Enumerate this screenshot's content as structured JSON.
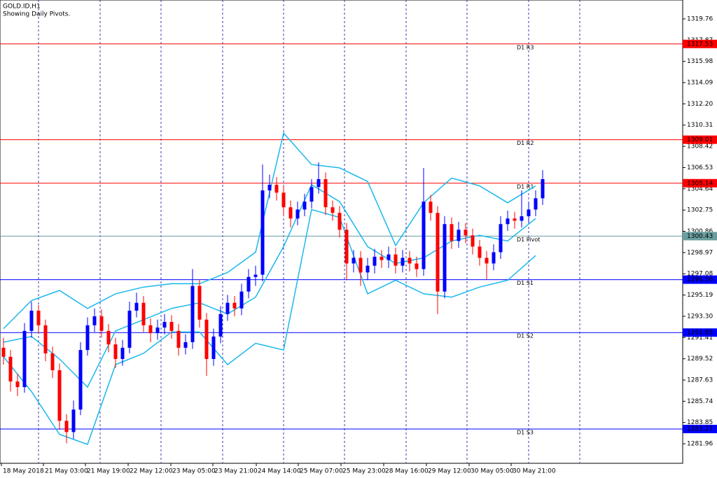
{
  "chart_data": {
    "type": "candlestick",
    "title": "GOLD.ID,H1",
    "subtitle": "Showing Daily Pivots.",
    "up_color": "#0000ff",
    "down_color": "#ff0000",
    "band_color": "#1ab8ec",
    "xlim": [
      -0.5,
      97
    ],
    "ylim": [
      1280.22,
      1321.44
    ],
    "yticks": [
      1319.76,
      1317.87,
      1315.98,
      1314.09,
      {
        "value": 1312.2,
        "label": "1312.20"
      },
      1310.31,
      1308.42,
      1306.53,
      1304.64,
      1302.75,
      1300.86,
      1298.97,
      1297.08,
      1295.19,
      {
        "value": 1293.3,
        "label": "1293.30"
      },
      1291.41,
      1289.52,
      1287.63,
      1285.74,
      1283.85,
      1281.96
    ],
    "xticks": [
      {
        "value": -0.3,
        "label": "18 May 2018"
      },
      {
        "value": 5.7,
        "label": "21 May 03:00"
      },
      {
        "value": 11.7,
        "label": "21 May 19:00"
      },
      {
        "value": 17.8,
        "label": "22 May 12:00"
      },
      {
        "value": 23.9,
        "label": "23 May 05:00"
      },
      {
        "value": 29.9,
        "label": "23 May 21:00"
      },
      {
        "value": 36.1,
        "label": "24 May 14:00"
      },
      {
        "value": 42.1,
        "label": "25 May 07:00"
      },
      {
        "value": 48.2,
        "label": "25 May 23:00"
      },
      {
        "value": 54.3,
        "label": "28 May 16:00"
      },
      {
        "value": 60.4,
        "label": "29 May 12:00"
      },
      {
        "value": 66.5,
        "label": "30 May 05:00"
      },
      {
        "value": 72.5,
        "label": "30 May 21:00"
      }
    ],
    "open": [
      1290.5,
      1289.7,
      1287.5,
      1287.0,
      1292.0,
      1293.8,
      1292.5,
      1290.0,
      1288.5,
      1284.0,
      1283.0,
      1285.0,
      1290.3,
      1292.5,
      1293.3,
      1292.0,
      1290.8,
      1289.5,
      1290.5,
      1293.8,
      1294.5,
      1292.5,
      1291.8,
      1292.3,
      1292.8,
      1292.0,
      1290.5,
      1291.0,
      1296.0,
      1293.0,
      1289.5,
      1291.5,
      1293.5,
      1294.5,
      1294.0,
      1295.5,
      1296.8,
      1297.0,
      1304.5,
      1305.0,
      1304.3,
      1303.0,
      1302.0,
      1302.8,
      1303.5,
      1304.8,
      1305.5,
      1303.0,
      1302.5,
      1301.0,
      1298.0,
      1298.5,
      1297.2,
      1297.8,
      1298.6,
      1298.3,
      1298.8,
      1297.8,
      1298.5,
      1298.0,
      1297.5,
      1303.5,
      1302.5,
      1295.5,
      1301.5,
      1300.0,
      1301.0,
      1300.5,
      1299.5,
      1298.5,
      1298.0,
      1299.0,
      1301.5,
      1302.0,
      1301.8,
      1302.2,
      1302.8,
      1303.8
    ],
    "high": [
      1291.4,
      1290.3,
      1288.2,
      1292.7,
      1294.6,
      1294.3,
      1293.0,
      1290.6,
      1289.1,
      1284.6,
      1285.8,
      1291.0,
      1293.2,
      1294.0,
      1293.9,
      1292.6,
      1291.4,
      1291.2,
      1294.6,
      1295.4,
      1295.1,
      1293.1,
      1293.0,
      1293.5,
      1293.4,
      1292.6,
      1291.7,
      1297.5,
      1296.6,
      1293.6,
      1292.2,
      1294.2,
      1295.2,
      1295.1,
      1296.2,
      1297.5,
      1297.8,
      1306.8,
      1305.9,
      1305.7,
      1304.9,
      1303.6,
      1303.5,
      1304.2,
      1305.5,
      1307.0,
      1306.1,
      1303.6,
      1303.1,
      1301.6,
      1299.2,
      1299.1,
      1298.5,
      1299.3,
      1299.2,
      1299.5,
      1299.4,
      1299.2,
      1299.1,
      1298.6,
      1306.5,
      1304.1,
      1303.1,
      1302.2,
      1302.1,
      1301.7,
      1301.6,
      1301.1,
      1300.1,
      1299.1,
      1299.7,
      1302.2,
      1302.7,
      1302.6,
      1304.5,
      1303.5,
      1304.5,
      1306.3
    ],
    "low": [
      1289.0,
      1286.6,
      1286.2,
      1286.5,
      1291.4,
      1291.8,
      1289.3,
      1287.8,
      1283.2,
      1282.0,
      1282.4,
      1284.5,
      1289.8,
      1291.9,
      1291.4,
      1290.1,
      1288.7,
      1288.9,
      1290.0,
      1293.2,
      1291.9,
      1291.0,
      1291.2,
      1291.7,
      1291.3,
      1289.8,
      1289.9,
      1290.4,
      1292.3,
      1288.0,
      1288.9,
      1290.9,
      1292.9,
      1293.3,
      1293.4,
      1294.9,
      1296.0,
      1296.4,
      1303.8,
      1303.6,
      1302.3,
      1301.2,
      1301.4,
      1302.2,
      1302.9,
      1304.2,
      1302.3,
      1301.8,
      1300.3,
      1296.5,
      1297.2,
      1296.0,
      1296.5,
      1297.1,
      1297.6,
      1297.6,
      1297.1,
      1297.2,
      1297.3,
      1296.8,
      1296.9,
      1301.8,
      1293.5,
      1294.9,
      1299.3,
      1299.4,
      1299.8,
      1298.8,
      1297.8,
      1296.6,
      1297.4,
      1298.4,
      1300.9,
      1301.1,
      1301.2,
      1301.6,
      1302.2,
      1303.2
    ],
    "close": [
      1289.7,
      1287.5,
      1287.0,
      1292.0,
      1293.8,
      1292.5,
      1290.0,
      1288.5,
      1284.0,
      1283.0,
      1285.0,
      1290.3,
      1292.5,
      1293.3,
      1292.0,
      1290.8,
      1289.5,
      1290.5,
      1293.8,
      1294.5,
      1292.5,
      1291.8,
      1292.3,
      1292.8,
      1292.0,
      1290.5,
      1291.0,
      1296.0,
      1293.0,
      1289.5,
      1291.5,
      1293.5,
      1294.5,
      1294.0,
      1295.5,
      1296.8,
      1297.0,
      1304.5,
      1305.0,
      1304.3,
      1303.0,
      1302.0,
      1302.8,
      1303.5,
      1304.8,
      1305.5,
      1303.0,
      1302.5,
      1301.0,
      1298.0,
      1298.5,
      1297.2,
      1297.8,
      1298.6,
      1298.3,
      1298.8,
      1297.8,
      1298.5,
      1298.0,
      1297.5,
      1303.5,
      1302.5,
      1295.5,
      1301.5,
      1300.0,
      1301.0,
      1300.5,
      1299.5,
      1298.5,
      1298.0,
      1299.0,
      1301.5,
      1302.0,
      1301.8,
      1302.2,
      1302.8,
      1303.8,
      1305.5
    ],
    "band_x": [
      0,
      4,
      8,
      12,
      16,
      20,
      24,
      28,
      32,
      36,
      40,
      44,
      48,
      52,
      56,
      60,
      64,
      68,
      72,
      76
    ],
    "bands": [
      {
        "values": [
          1292.2,
          1294.7,
          1295.6,
          1294.0,
          1295.3,
          1295.9,
          1296.2,
          1296.2,
          1297.2,
          1299.0,
          1309.6,
          1306.8,
          1306.5,
          1305.3,
          1299.6,
          1303.4,
          1305.6,
          1304.9,
          1303.4,
          1304.9
        ]
      },
      {
        "values": [
          1291.0,
          1291.5,
          1289.5,
          1287.0,
          1292.0,
          1293.0,
          1294.0,
          1294.5,
          1293.5,
          1295.0,
          1299.5,
          1305.0,
          1303.5,
          1299.5,
          1298.0,
          1298.5,
          1300.0,
          1300.5,
          1300.0,
          1302.0
        ]
      },
      {
        "values": [
          1289.7,
          1286.6,
          1282.8,
          1281.9,
          1289.0,
          1290.0,
          1291.9,
          1291.9,
          1289.0,
          1290.9,
          1290.3,
          1302.8,
          1302.1,
          1295.3,
          1296.5,
          1295.3,
          1295.0,
          1295.9,
          1296.5,
          1298.7
        ]
      }
    ],
    "pivots": [
      {
        "name": "D1 R3",
        "value": 1317.53,
        "color": "#ff0000"
      },
      {
        "name": "D1 R2",
        "value": 1309.01,
        "color": "#ff0000"
      },
      {
        "name": "D1 R1",
        "value": 1305.14,
        "color": "#ff0000"
      },
      {
        "name": "D1 Pivot",
        "value": 1300.43,
        "color": "#6a9e9e"
      },
      {
        "name": "D1 S1",
        "value": 1296.56,
        "color": "#0000ff"
      },
      {
        "name": "D1 S2",
        "value": 1291.85,
        "color": "#0000ff"
      },
      {
        "name": "D1 S3",
        "value": 1283.27,
        "color": "#0000ff"
      }
    ]
  }
}
